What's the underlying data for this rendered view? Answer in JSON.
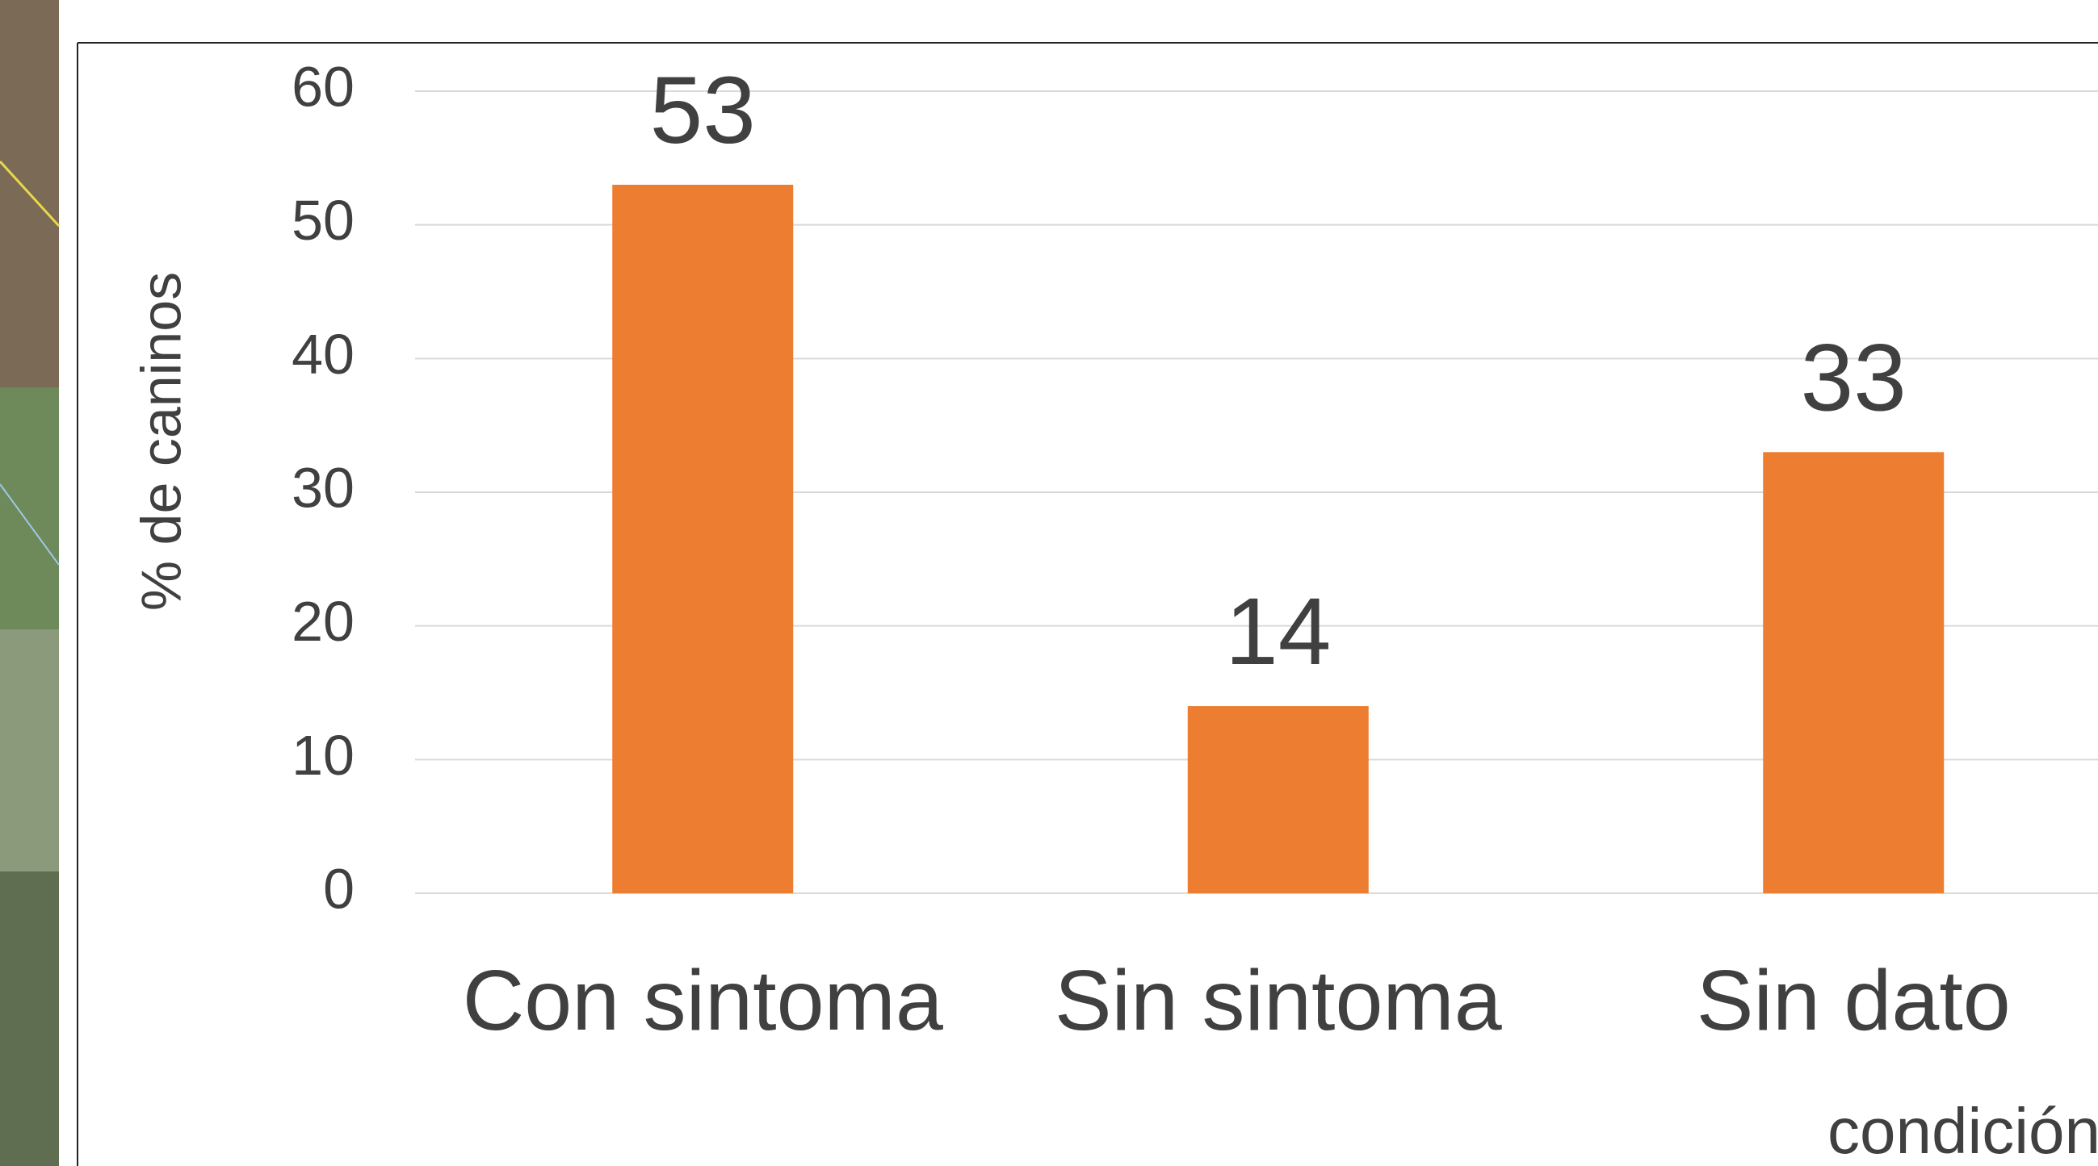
{
  "chart_data": {
    "type": "bar",
    "y_label": "% de caninos",
    "x_label": "condición",
    "categories": [
      "Con sintoma",
      "Sin sintoma",
      "Sin dato"
    ],
    "values": [
      53,
      14,
      33
    ],
    "color": "#ed7d31",
    "ylim": [
      0,
      60
    ],
    "yticks": [
      0,
      10,
      20,
      30,
      40,
      50,
      60
    ],
    "grid": true
  }
}
